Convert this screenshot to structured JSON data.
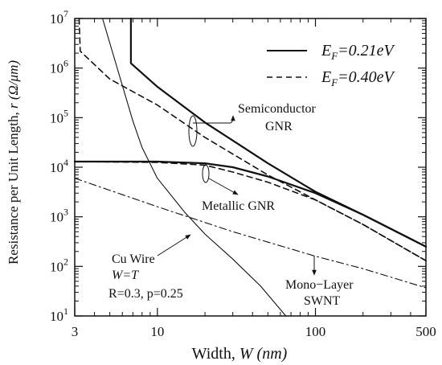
{
  "chart_data": {
    "type": "line",
    "title": "",
    "xlabel": "Width, ",
    "xlabel_var": "W",
    "xlabel_unit": "(nm)",
    "ylabel": "Resistance per Unit Length, ",
    "ylabel_var": "r",
    "ylabel_unit": "(Ω/μm)",
    "x_scale": "log",
    "y_scale": "log",
    "xlim": [
      3,
      500
    ],
    "ylim": [
      10,
      10000000
    ],
    "grid": false,
    "x_ticks": [
      {
        "value": 3,
        "label": "3"
      },
      {
        "value": 10,
        "label": "10"
      },
      {
        "value": 100,
        "label": "100"
      },
      {
        "value": 500,
        "label": "500"
      }
    ],
    "y_ticks": [
      {
        "value": 10,
        "base": "10",
        "exp": "1"
      },
      {
        "value": 100,
        "base": "10",
        "exp": "2"
      },
      {
        "value": 1000,
        "base": "10",
        "exp": "3"
      },
      {
        "value": 10000,
        "base": "10",
        "exp": "4"
      },
      {
        "value": 100000,
        "base": "10",
        "exp": "5"
      },
      {
        "value": 1000000,
        "base": "10",
        "exp": "6"
      },
      {
        "value": 10000000,
        "base": "10",
        "exp": "7"
      }
    ],
    "legend": {
      "position": "top-right",
      "entries": [
        {
          "var": "E",
          "sub": "F",
          "text": "=0.21eV",
          "dash": "solid"
        },
        {
          "var": "E",
          "sub": "F",
          "text": "=0.40eV",
          "dash": "dashed"
        }
      ]
    },
    "series": [
      {
        "group": "Semiconductor GNR",
        "dash": "solid",
        "points": [
          [
            6.8,
            10000000
          ],
          [
            6.8,
            1250000
          ],
          [
            10,
            420000
          ],
          [
            20,
            80000
          ],
          [
            50,
            12000
          ],
          [
            100,
            3200
          ],
          [
            200,
            1100
          ],
          [
            500,
            250
          ]
        ]
      },
      {
        "group": "Semiconductor GNR",
        "dash": "dashed",
        "points": [
          [
            3.2,
            10000000
          ],
          [
            3.25,
            2200000
          ],
          [
            5,
            600000
          ],
          [
            10,
            180000
          ],
          [
            20,
            40000
          ],
          [
            50,
            7000
          ],
          [
            100,
            2200
          ],
          [
            200,
            700
          ],
          [
            500,
            130
          ]
        ]
      },
      {
        "group": "Metallic GNR",
        "dash": "solid",
        "points": [
          [
            3,
            13000
          ],
          [
            10,
            13000
          ],
          [
            20,
            12000
          ],
          [
            30,
            10000
          ],
          [
            50,
            6500
          ],
          [
            100,
            3000
          ],
          [
            200,
            1100
          ],
          [
            500,
            250
          ]
        ]
      },
      {
        "group": "Metallic GNR",
        "dash": "dashed",
        "points": [
          [
            3,
            13000
          ],
          [
            10,
            12500
          ],
          [
            20,
            11000
          ],
          [
            30,
            8000
          ],
          [
            50,
            5000
          ],
          [
            100,
            2200
          ],
          [
            200,
            700
          ],
          [
            500,
            130
          ]
        ]
      },
      {
        "group": "Mono-Layer SWNT",
        "dash": "dashdot",
        "points": [
          [
            3,
            6000
          ],
          [
            10,
            1600
          ],
          [
            30,
            500
          ],
          [
            100,
            160
          ],
          [
            200,
            90
          ],
          [
            500,
            37
          ]
        ]
      },
      {
        "group": "Cu Wire",
        "dash": "solid-thin",
        "points": [
          [
            4.5,
            10000000
          ],
          [
            5,
            3200000
          ],
          [
            6,
            450000
          ],
          [
            7,
            85000
          ],
          [
            8,
            25000
          ],
          [
            10,
            6000
          ],
          [
            15,
            1200
          ],
          [
            20,
            450
          ],
          [
            30,
            140
          ],
          [
            45,
            40
          ],
          [
            65,
            10
          ]
        ]
      }
    ],
    "annotations": [
      {
        "id": "semiconductor-gnr-label",
        "lines": [
          "Semiconductor",
          "GNR"
        ]
      },
      {
        "id": "metallic-gnr-label",
        "lines": [
          "Metallic GNR"
        ]
      },
      {
        "id": "cu-wire-label",
        "lines": [
          "Cu Wire"
        ],
        "var_line": "W=T",
        "param_line": "R=0.3, p=0.25"
      },
      {
        "id": "swnt-label",
        "lines": [
          "Mono−Layer",
          "SWNT"
        ]
      }
    ]
  }
}
